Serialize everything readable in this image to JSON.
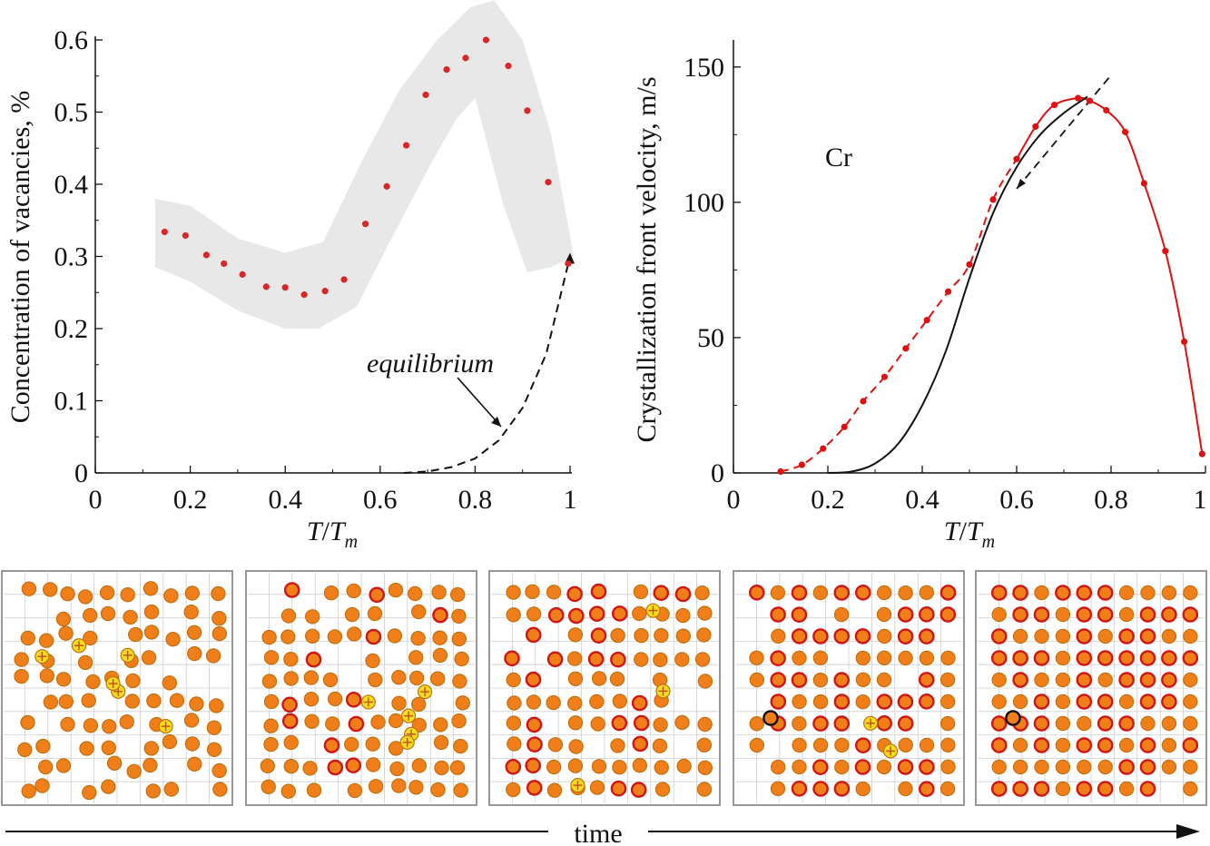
{
  "chart_data": [
    {
      "type": "scatter",
      "ylabel": "Concentration of vacancies, %",
      "xlabel_main": "T",
      "xlabel_denom": "T",
      "xlabel_sub": "m",
      "xlim": [
        0,
        1
      ],
      "ylim": [
        0,
        0.6
      ],
      "xticks": [
        "0",
        "0.2",
        "0.4",
        "0.6",
        "0.8",
        "1"
      ],
      "yticks": [
        "0",
        "0.1",
        "0.2",
        "0.3",
        "0.4",
        "0.5",
        "0.6"
      ],
      "annotation": "equilibrium",
      "colors": {
        "points": "#d62828",
        "band": "#e8e8e8",
        "equilibrium": "#111111"
      },
      "series": [
        {
          "x": [
            0.146,
            0.19,
            0.234,
            0.271,
            0.31,
            0.36,
            0.4,
            0.44,
            0.484,
            0.524,
            0.569,
            0.614,
            0.655,
            0.696,
            0.74,
            0.78,
            0.823,
            0.87,
            0.91,
            0.954,
            0.996
          ],
          "y": [
            0.334,
            0.329,
            0.302,
            0.29,
            0.275,
            0.258,
            0.257,
            0.247,
            0.252,
            0.268,
            0.345,
            0.397,
            0.454,
            0.524,
            0.559,
            0.575,
            0.6,
            0.564,
            0.502,
            0.403,
            0.29
          ]
        },
        {
          "x": [
            0.65,
            0.7,
            0.75,
            0.8,
            0.85,
            0.9,
            0.95,
            1.0
          ],
          "y": [
            0.0,
            0.002,
            0.008,
            0.02,
            0.045,
            0.09,
            0.165,
            0.3
          ]
        }
      ]
    },
    {
      "type": "line",
      "ylabel": "Crystallization front velocity, m/s",
      "xlabel_main": "T",
      "xlabel_denom": "T",
      "xlabel_sub": "m",
      "xlim": [
        0,
        1
      ],
      "ylim": [
        0,
        160
      ],
      "xticks": [
        "0",
        "0.2",
        "0.4",
        "0.6",
        "0.8",
        "1"
      ],
      "yticks": [
        "0",
        "50",
        "100",
        "150"
      ],
      "annotation": "Cr",
      "colors": {
        "red": "#e01010",
        "black": "#111111"
      },
      "series": [
        {
          "x": [
            0.1,
            0.145,
            0.19,
            0.235,
            0.275,
            0.32,
            0.365,
            0.41,
            0.455,
            0.5,
            0.55,
            0.6,
            0.64,
            0.68,
            0.73,
            0.755,
            0.79,
            0.83,
            0.87,
            0.915,
            0.955,
            0.993
          ],
          "y": [
            0.5,
            3.0,
            9.0,
            17.0,
            26.5,
            35.5,
            46.0,
            56.5,
            67.0,
            77.0,
            101.0,
            116.0,
            128.0,
            136.0,
            138.5,
            137.5,
            134.0,
            126.0,
            107.0,
            82.0,
            48.5,
            7.0
          ]
        },
        {
          "x": [
            0.2,
            0.25,
            0.3,
            0.35,
            0.4,
            0.45,
            0.5,
            0.55,
            0.6,
            0.65,
            0.7,
            0.75
          ],
          "y": [
            0.0,
            0.5,
            3.5,
            11.0,
            25.0,
            45.0,
            72.0,
            96.0,
            113.0,
            125.0,
            133.0,
            139.0
          ]
        },
        {
          "x": [
            0.6,
            0.8
          ],
          "y": [
            105.0,
            147.0
          ]
        }
      ]
    }
  ],
  "snapshots": {
    "time_label": "time",
    "colors": {
      "atom": "#f07f1a",
      "edge": "#c07010",
      "crystal_edge": "#d01515",
      "interstitial": "#f4dc1a",
      "vacancy_ring": "#111111"
    }
  }
}
